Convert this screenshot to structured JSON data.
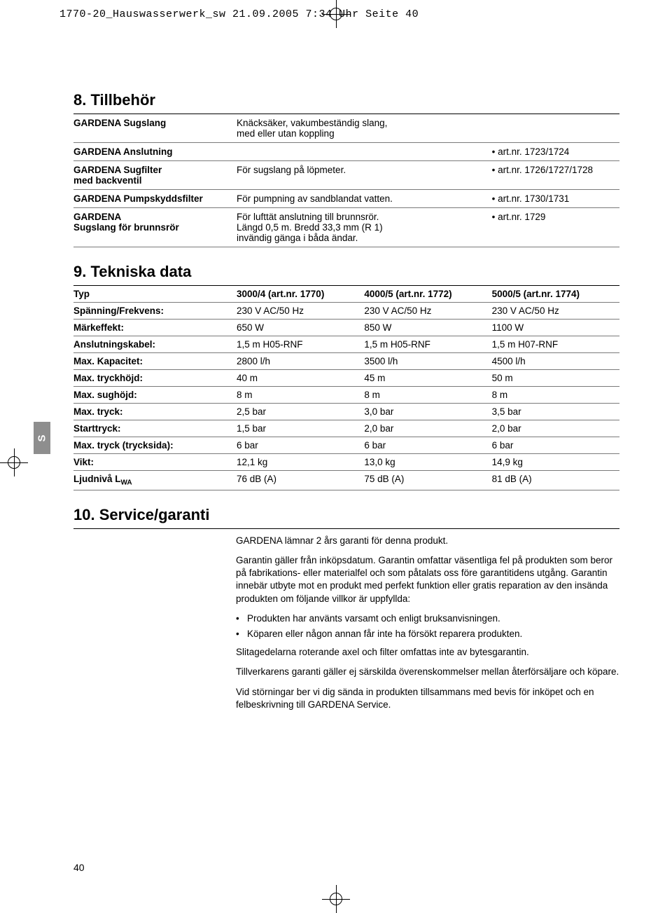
{
  "print_header": "1770-20_Hauswasserwerk_sw  21.09.2005  7:34 Uhr  Seite 40",
  "side_tab": "S",
  "page_number": "40",
  "section8": {
    "heading": "8. Tillbehör",
    "rows": [
      {
        "name": "GARDENA Sugslang",
        "desc": "Knäcksäker, vakumbeständig slang, med eller utan koppling",
        "art": ""
      },
      {
        "name": "GARDENA Anslutning",
        "desc": "",
        "art": "art.nr. 1723/1724"
      },
      {
        "name": "GARDENA Sugfilter med backventil",
        "desc": "För sugslang på löpmeter.",
        "art": "art.nr. 1726/1727/1728"
      },
      {
        "name": "GARDENA Pumpskyddsfilter",
        "desc": "För pumpning av sandblandat vatten.",
        "art": "art.nr. 1730/1731"
      },
      {
        "name": "GARDENA Sugslang för brunnsrör",
        "desc": "För lufttät anslutning till brunnsrör. Längd 0,5 m. Bredd 33,3 mm (R 1) invändig gänga i båda ändar.",
        "art": "art.nr. 1729"
      }
    ]
  },
  "section9": {
    "heading": "9. Tekniska data",
    "header": [
      "Typ",
      "3000/4 (art.nr. 1770)",
      "4000/5 (art.nr. 1772)",
      "5000/5 (art.nr. 1774)"
    ],
    "rows": [
      [
        "Spänning/Frekvens:",
        "230 V AC/50 Hz",
        "230 V AC/50 Hz",
        "230 V AC/50 Hz"
      ],
      [
        "Märkeffekt:",
        "650 W",
        "850 W",
        "1100 W"
      ],
      [
        "Anslutningskabel:",
        "1,5 m H05-RNF",
        "1,5 m H05-RNF",
        "1,5 m H07-RNF"
      ],
      [
        "Max. Kapacitet:",
        "2800 l/h",
        "3500 l/h",
        "4500 l/h"
      ],
      [
        "Max. tryckhöjd:",
        "40 m",
        "45 m",
        "50 m"
      ],
      [
        "Max. sughöjd:",
        "8 m",
        "8 m",
        "8 m"
      ],
      [
        "Max. tryck:",
        "2,5 bar",
        "3,0 bar",
        "3,5 bar"
      ],
      [
        "Starttryck:",
        "1,5 bar",
        "2,0 bar",
        "2,0 bar"
      ],
      [
        "Max. tryck (trycksida):",
        "6 bar",
        "6 bar",
        "6 bar"
      ],
      [
        "Vikt:",
        "12,1 kg",
        "13,0 kg",
        "14,9 kg"
      ],
      [
        "Ljudnivå LWA",
        "76 dB (A)",
        "75 dB (A)",
        "81 dB (A)"
      ]
    ]
  },
  "section10": {
    "heading": "10. Service/garanti",
    "p1": "GARDENA lämnar 2 års garanti för denna produkt.",
    "p2": "Garantin gäller från inköpsdatum. Garantin omfattar väsentliga fel på produkten som beror på fabrikations- eller materialfel och som påtalats oss före garantitidens utgång. Garantin innebär utbyte mot en produkt med perfekt funktion eller gratis reparation av den insända produkten om följande villkor är uppfyllda:",
    "bullets": [
      "Produkten har använts varsamt och enligt bruksanvisningen.",
      "Köparen eller någon annan får inte ha försökt reparera produkten."
    ],
    "p3": "Slitagedelarna roterande axel och filter omfattas inte av bytesgarantin.",
    "p4": "Tillverkarens garanti gäller ej särskilda överenskommelser mellan återförsäljare och köpare.",
    "p5": "Vid störningar ber vi dig sända in produkten tillsammans med bevis för inköpet och en felbeskrivning till GARDENA Service."
  }
}
